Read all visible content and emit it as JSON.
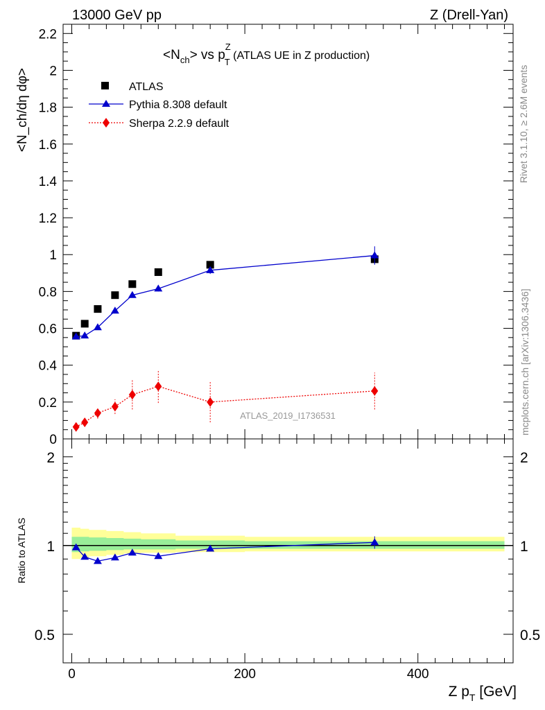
{
  "header": {
    "energy_label": "13000 GeV pp",
    "process_label": "Z (Drell-Yan)",
    "watermark": "ATLAS_2019_I1736531",
    "side_top": "Rivet 3.1.10, ≥ 2.6M events",
    "side_bottom": "mcplots.cern.ch [arXiv:1306.3436]"
  },
  "chart_data": [
    {
      "type": "scatter",
      "title_main": "<N",
      "title_sub": "ch",
      "title_mid": "> vs p",
      "title_sup": "Z",
      "title_sub2": "T",
      "title_rest": " (ATLAS UE in Z production)",
      "ylabel": "<N_ch/dη dφ>",
      "ylim": [
        0,
        2.25
      ],
      "xlim": [
        -10,
        510
      ],
      "yticks": [
        "0",
        "0.2",
        "0.4",
        "0.6",
        "0.8",
        "1",
        "1.2",
        "1.4",
        "1.6",
        "1.8",
        "2",
        "2.2"
      ],
      "legend_position": "top-left",
      "series": [
        {
          "name": "ATLAS",
          "color": "#000000",
          "marker": "square",
          "line": "none",
          "x": [
            5,
            15,
            30,
            50,
            70,
            100,
            160,
            350
          ],
          "y": [
            0.56,
            0.625,
            0.705,
            0.78,
            0.84,
            0.905,
            0.945,
            0.975
          ],
          "err": [
            0.005,
            0.005,
            0.005,
            0.005,
            0.005,
            0.005,
            0.005,
            0.02
          ]
        },
        {
          "name": "Pythia 8.308 default",
          "color": "#0000cc",
          "marker": "triangle",
          "line": "solid",
          "x": [
            5,
            15,
            30,
            50,
            70,
            100,
            160,
            350
          ],
          "y": [
            0.555,
            0.56,
            0.605,
            0.695,
            0.78,
            0.815,
            0.915,
            0.995
          ],
          "err": [
            0.005,
            0.005,
            0.005,
            0.005,
            0.01,
            0.015,
            0.02,
            0.05
          ]
        },
        {
          "name": "Sherpa 2.2.9 default",
          "color": "#ee0000",
          "marker": "diamond",
          "line": "dotted",
          "x": [
            5,
            15,
            30,
            50,
            70,
            100,
            160,
            350
          ],
          "y": [
            0.065,
            0.09,
            0.14,
            0.175,
            0.24,
            0.285,
            0.2,
            0.26
          ],
          "err": [
            0.015,
            0.02,
            0.03,
            0.04,
            0.08,
            0.09,
            0.11,
            0.1
          ]
        }
      ]
    },
    {
      "type": "line",
      "ylabel": "Ratio to ATLAS",
      "xlabel_main": "Z p",
      "xlabel_sub": "T",
      "xlabel_rest": " [GeV]",
      "ylim": [
        0.4,
        2.3
      ],
      "log_y": true,
      "xticks": [
        "0",
        "200",
        "400"
      ],
      "yticks": [
        "0.5",
        "1",
        "2"
      ],
      "bands": [
        {
          "color": "#ffff99",
          "x": [
            0,
            10,
            20,
            40,
            60,
            80,
            120,
            200,
            500
          ],
          "lo": [
            0.9,
            0.91,
            0.92,
            0.93,
            0.94,
            0.945,
            0.95,
            0.955,
            0.955
          ],
          "hi": [
            1.15,
            1.14,
            1.13,
            1.12,
            1.11,
            1.1,
            1.08,
            1.07,
            1.07
          ]
        },
        {
          "color": "#99ee99",
          "x": [
            0,
            10,
            20,
            40,
            60,
            80,
            120,
            200,
            500
          ],
          "lo": [
            0.95,
            0.955,
            0.96,
            0.965,
            0.97,
            0.97,
            0.975,
            0.975,
            0.975
          ],
          "hi": [
            1.07,
            1.07,
            1.065,
            1.06,
            1.055,
            1.05,
            1.04,
            1.035,
            1.035
          ]
        }
      ],
      "series": [
        {
          "name": "Pythia 8.308 default",
          "color": "#0000cc",
          "marker": "triangle",
          "x": [
            5,
            15,
            30,
            50,
            70,
            100,
            160,
            350
          ],
          "y": [
            0.985,
            0.915,
            0.885,
            0.91,
            0.945,
            0.92,
            0.975,
            1.025
          ],
          "err": [
            0.01,
            0.01,
            0.01,
            0.01,
            0.01,
            0.015,
            0.015,
            0.05
          ]
        }
      ]
    }
  ]
}
